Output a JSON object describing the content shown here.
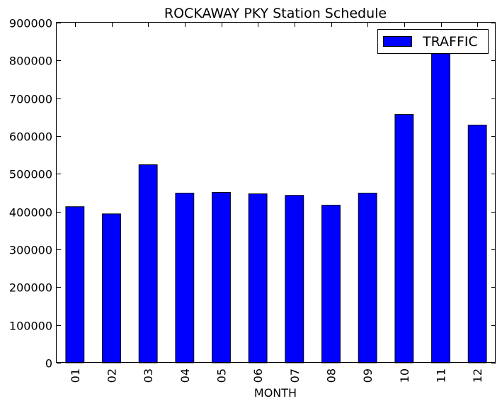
{
  "chart_data": {
    "type": "bar",
    "title": "ROCKAWAY PKY Station Schedule",
    "xlabel": "MONTH",
    "ylabel": "",
    "categories": [
      "01",
      "02",
      "03",
      "04",
      "05",
      "06",
      "07",
      "08",
      "09",
      "10",
      "11",
      "12"
    ],
    "series": [
      {
        "name": "TRAFFIC",
        "color": "#0000ff",
        "values": [
          413000,
          394000,
          524000,
          449000,
          451000,
          447000,
          443000,
          417000,
          449000,
          657000,
          818000,
          629000
        ]
      }
    ],
    "ylim": [
      0,
      900000
    ],
    "yticks": [
      0,
      100000,
      200000,
      300000,
      400000,
      500000,
      600000,
      700000,
      800000,
      900000
    ],
    "ytick_labels": [
      "0",
      "100000",
      "200000",
      "300000",
      "400000",
      "500000",
      "600000",
      "700000",
      "800000",
      "900000"
    ],
    "grid": false,
    "legend_position": "top-right"
  }
}
